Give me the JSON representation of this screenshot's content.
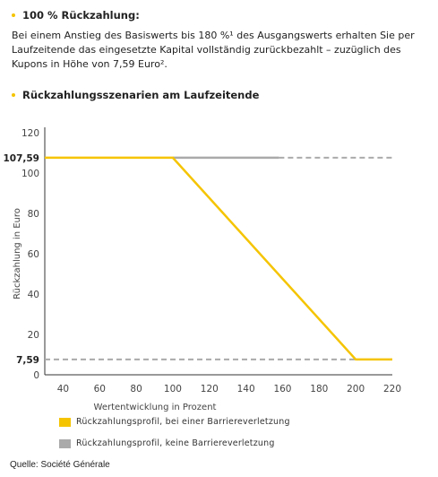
{
  "heading1": "100 % Rückzahlung:",
  "paragraph": "Bei einem Anstieg des Basiswerts bis 180 %¹ des Ausgangswerts erhalten Sie per Laufzeitende das eingesetzte Kapital vollständig zurückbezahlt – zuzüglich des Kupons in Höhe von 7,59 Euro².",
  "heading2": "Rückzahlungsszenarien am Laufzeitende",
  "source": "Quelle: Société Générale",
  "colors": {
    "accent": "#f5c400",
    "gray": "#aaaaaa"
  },
  "chart_data": {
    "type": "line",
    "xlabel": "Wertentwicklung in Prozent",
    "ylabel": "Rückzahlung in Euro",
    "xlim": [
      30,
      220
    ],
    "ylim": [
      0,
      120
    ],
    "xticks": [
      40,
      60,
      80,
      100,
      120,
      140,
      160,
      180,
      200,
      220
    ],
    "yticks": [
      0,
      20,
      40,
      60,
      80,
      100,
      120
    ],
    "ytick_labels": [
      "0",
      "20",
      "40",
      "60",
      "80",
      "100",
      "120"
    ],
    "highlight_values": [
      {
        "value": 107.59,
        "label": "107,59"
      },
      {
        "value": 7.59,
        "label": "7,59"
      }
    ],
    "grid": false,
    "legend_position": "bottom-left",
    "series": [
      {
        "name": "Rückzahlungsprofil, bei einer Barriereverletzung",
        "color": "#f5c400",
        "x": [
          30,
          100,
          200,
          220
        ],
        "y": [
          107.59,
          107.59,
          7.59,
          7.59
        ]
      },
      {
        "name": "Rückzahlungsprofil, keine Barriereverletzung",
        "color": "#aaaaaa",
        "x": [
          100,
          158
        ],
        "y": [
          107.59,
          107.59
        ]
      }
    ],
    "dashed_extensions": [
      {
        "value": 107.59,
        "from_x": 158,
        "to_x": 220
      },
      {
        "value": 7.59,
        "from_x": 30,
        "to_x": 200
      }
    ]
  }
}
